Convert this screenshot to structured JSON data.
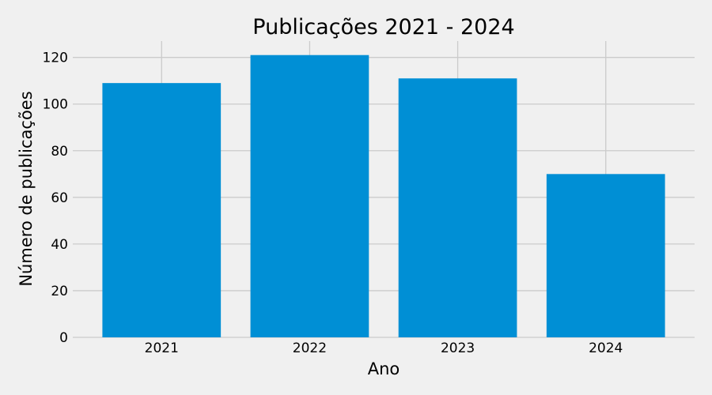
{
  "colors": {
    "background": "#f0f0f0",
    "bar": "#008fd5",
    "grid": "#cbcbcb"
  },
  "chart_data": {
    "type": "bar",
    "title": "Publicações 2021 - 2024",
    "xlabel": "Ano",
    "ylabel": "Número de publicações",
    "categories": [
      "2021",
      "2022",
      "2023",
      "2024"
    ],
    "values": [
      109,
      121,
      111,
      70
    ],
    "ylim": [
      0,
      127
    ],
    "yticks": [
      0,
      20,
      40,
      60,
      80,
      100,
      120
    ],
    "grid": true,
    "legend": "none"
  }
}
